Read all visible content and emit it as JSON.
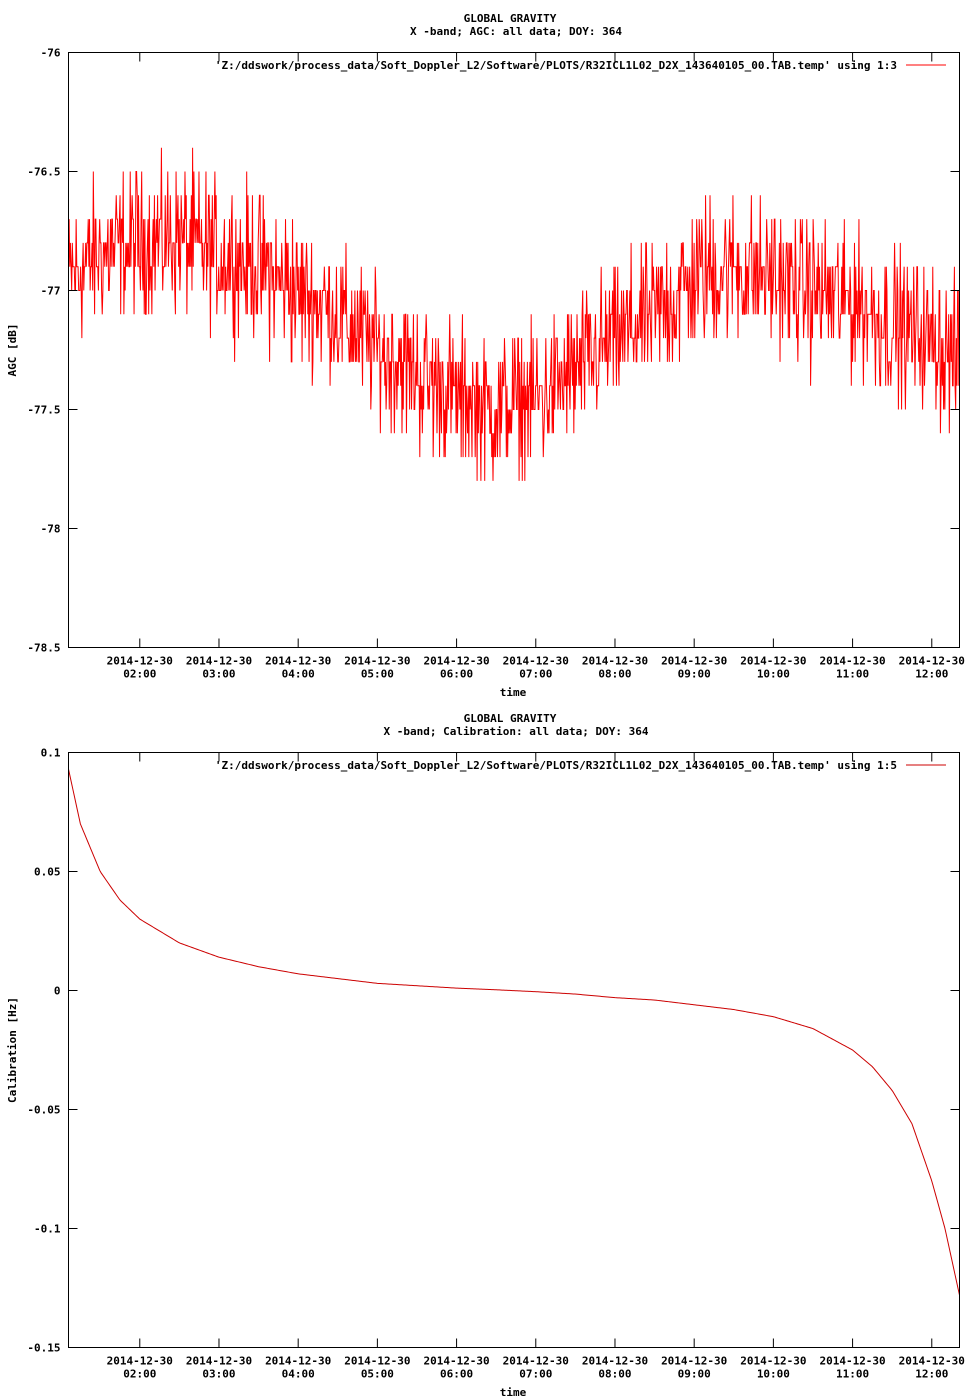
{
  "chart_data": [
    {
      "type": "line",
      "title": "GLOBAL GRAVITY",
      "subtitle": "X -band; AGC: all data; DOY: 364",
      "xlabel": "time",
      "ylabel": "AGC [dB]",
      "ylim": [
        -78.5,
        -76
      ],
      "yticks": [
        "-76",
        "-76.5",
        "-77",
        "-77.5",
        "-78",
        "-78.5"
      ],
      "ytick_values": [
        -76,
        -76.5,
        -77,
        -77.5,
        -78,
        -78.5
      ],
      "xlim_hours": [
        1.1,
        12.35
      ],
      "xtick_hours": [
        2,
        3,
        4,
        5,
        6,
        7,
        8,
        9,
        10,
        11,
        12
      ],
      "xtick_dates": [
        "2014-12-30",
        "2014-12-30",
        "2014-12-30",
        "2014-12-30",
        "2014-12-30",
        "2014-12-30",
        "2014-12-30",
        "2014-12-30",
        "2014-12-30",
        "2014-12-30",
        "2014-12-30"
      ],
      "xtick_times": [
        "02:00",
        "03:00",
        "04:00",
        "05:00",
        "06:00",
        "07:00",
        "08:00",
        "09:00",
        "10:00",
        "11:00",
        "12:00"
      ],
      "legend": {
        "label": "'Z:/ddswork/process_data/Soft_Doppler_L2/Software/PLOTS/R32ICL1L02_D2X_143640105_00.TAB.temp' using 1:3",
        "position": "top-right"
      },
      "color": "#ff0000",
      "series": [
        {
          "time": [
            "01:06",
            "01:30",
            "02:00",
            "02:30",
            "03:00",
            "03:30",
            "04:00",
            "04:30",
            "05:00",
            "05:30",
            "06:00",
            "06:30",
            "07:00",
            "07:30",
            "08:00",
            "08:30",
            "09:00",
            "09:30",
            "10:00",
            "10:30",
            "11:00",
            "11:30",
            "12:00",
            "12:21"
          ],
          "values": [
            -76.95,
            -76.85,
            -76.8,
            -76.78,
            -76.85,
            -76.9,
            -77.0,
            -77.1,
            -77.25,
            -77.35,
            -77.45,
            -77.5,
            -77.45,
            -77.35,
            -77.2,
            -77.1,
            -76.95,
            -76.9,
            -76.95,
            -77.0,
            -77.05,
            -77.15,
            -77.2,
            -77.3
          ],
          "noise_amplitude_db": 0.45
        }
      ]
    },
    {
      "type": "line",
      "title": "GLOBAL GRAVITY",
      "subtitle": "X -band; Calibration: all data; DOY: 364",
      "xlabel": "time",
      "ylabel": "Calibration [Hz]",
      "ylim": [
        -0.15,
        0.1
      ],
      "yticks": [
        "0.1",
        "0.05",
        "0",
        "-0.05",
        "-0.1",
        "-0.15"
      ],
      "ytick_values": [
        0.1,
        0.05,
        0,
        -0.05,
        -0.1,
        -0.15
      ],
      "xlim_hours": [
        1.1,
        12.35
      ],
      "xtick_hours": [
        2,
        3,
        4,
        5,
        6,
        7,
        8,
        9,
        10,
        11,
        12
      ],
      "xtick_dates": [
        "2014-12-30",
        "2014-12-30",
        "2014-12-30",
        "2014-12-30",
        "2014-12-30",
        "2014-12-30",
        "2014-12-30",
        "2014-12-30",
        "2014-12-30",
        "2014-12-30",
        "2014-12-30"
      ],
      "xtick_times": [
        "02:00",
        "03:00",
        "04:00",
        "05:00",
        "06:00",
        "07:00",
        "08:00",
        "09:00",
        "10:00",
        "11:00",
        "12:00"
      ],
      "legend": {
        "label": "'Z:/ddswork/process_data/Soft_Doppler_L2/Software/PLOTS/R32ICL1L02_D2X_143640105_00.TAB.temp' using 1:5",
        "position": "top-right"
      },
      "color": "#cc0000",
      "series": [
        {
          "time": [
            "01:06",
            "01:15",
            "01:30",
            "01:45",
            "02:00",
            "02:30",
            "03:00",
            "03:30",
            "04:00",
            "04:30",
            "05:00",
            "05:30",
            "06:00",
            "06:30",
            "07:00",
            "07:30",
            "08:00",
            "08:30",
            "09:00",
            "09:30",
            "10:00",
            "10:30",
            "11:00",
            "11:15",
            "11:30",
            "11:45",
            "12:00",
            "12:10",
            "12:21"
          ],
          "values": [
            0.093,
            0.07,
            0.05,
            0.038,
            0.03,
            0.02,
            0.014,
            0.01,
            0.007,
            0.005,
            0.003,
            0.002,
            0.001,
            0.0003,
            -0.0005,
            -0.0015,
            -0.003,
            -0.004,
            -0.006,
            -0.008,
            -0.011,
            -0.016,
            -0.025,
            -0.032,
            -0.042,
            -0.056,
            -0.08,
            -0.1,
            -0.128
          ]
        }
      ]
    }
  ]
}
